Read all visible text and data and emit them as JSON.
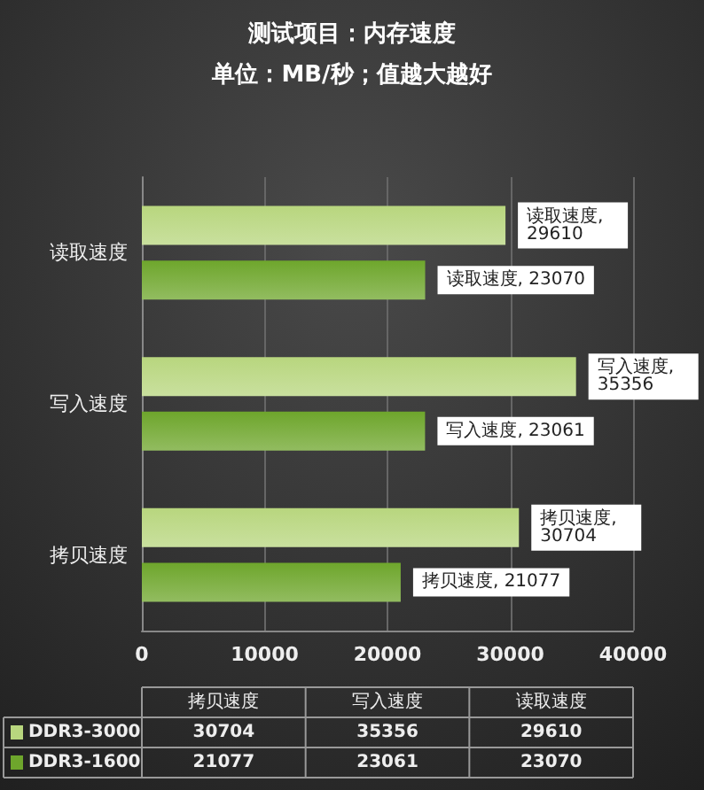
{
  "chart_data": {
    "type": "bar",
    "orientation": "horizontal",
    "title": "测试项目：内存速度",
    "subtitle": "单位：MB/秒；值越大越好",
    "categories": [
      "读取速度",
      "写入速度",
      "拷贝速度"
    ],
    "series": [
      {
        "name": "DDR3-3000",
        "color": "#b8d67e",
        "values": [
          29610,
          35356,
          30704
        ],
        "value_labels": [
          "读取速度, 29610",
          "写入速度, 35356",
          "拷贝速度, 30704"
        ]
      },
      {
        "name": "DDR3-1600",
        "color": "#6ea62c",
        "values": [
          23070,
          23061,
          21077
        ],
        "value_labels": [
          "读取速度, 23070",
          "写入速度, 23061",
          "拷贝速度, 21077"
        ]
      }
    ],
    "xlim": [
      0,
      40000
    ],
    "xticks": [
      0,
      10000,
      20000,
      30000,
      40000
    ],
    "grid": "x",
    "legend": "bottom",
    "annotations": [
      "30704",
      "35356",
      "29610",
      "21077",
      "23061",
      "23070"
    ]
  }
}
